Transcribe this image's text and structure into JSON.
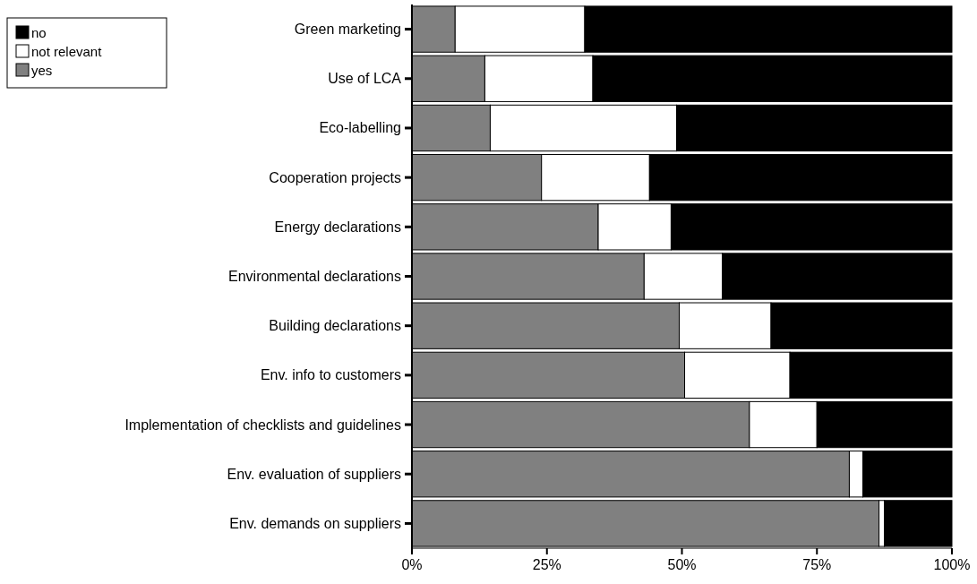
{
  "chart_data": {
    "type": "bar",
    "orientation": "horizontal",
    "stacked": true,
    "categories": [
      "Green marketing",
      "Use of LCA",
      "Eco-labelling",
      "Cooperation projects",
      "Energy declarations",
      "Environmental declarations",
      "Building declarations",
      "Env. info to customers",
      "Implementation of checklists and guidelines",
      "Env. evaluation of suppliers",
      "Env. demands on suppliers"
    ],
    "series": [
      {
        "name": "yes",
        "color": "#808080",
        "values": [
          8,
          13.5,
          14.5,
          24,
          34.5,
          43,
          49.5,
          50.5,
          62.5,
          81,
          86.5
        ]
      },
      {
        "name": "not relevant",
        "color": "#ffffff",
        "values": [
          24,
          20,
          34.5,
          20,
          13.5,
          14.5,
          17,
          19.5,
          12.5,
          2.5,
          1
        ]
      },
      {
        "name": "no",
        "color": "#000000",
        "values": [
          68,
          66.5,
          51,
          56,
          52,
          42.5,
          33.5,
          30,
          25,
          16.5,
          12.5
        ]
      }
    ],
    "xlim": [
      0,
      100
    ],
    "xticks": [
      {
        "value": 0,
        "label": "0%"
      },
      {
        "value": 25,
        "label": "25%"
      },
      {
        "value": 50,
        "label": "50%"
      },
      {
        "value": 75,
        "label": "75%"
      },
      {
        "value": 100,
        "label": "100%"
      }
    ],
    "legend": "top left",
    "grid": false
  }
}
